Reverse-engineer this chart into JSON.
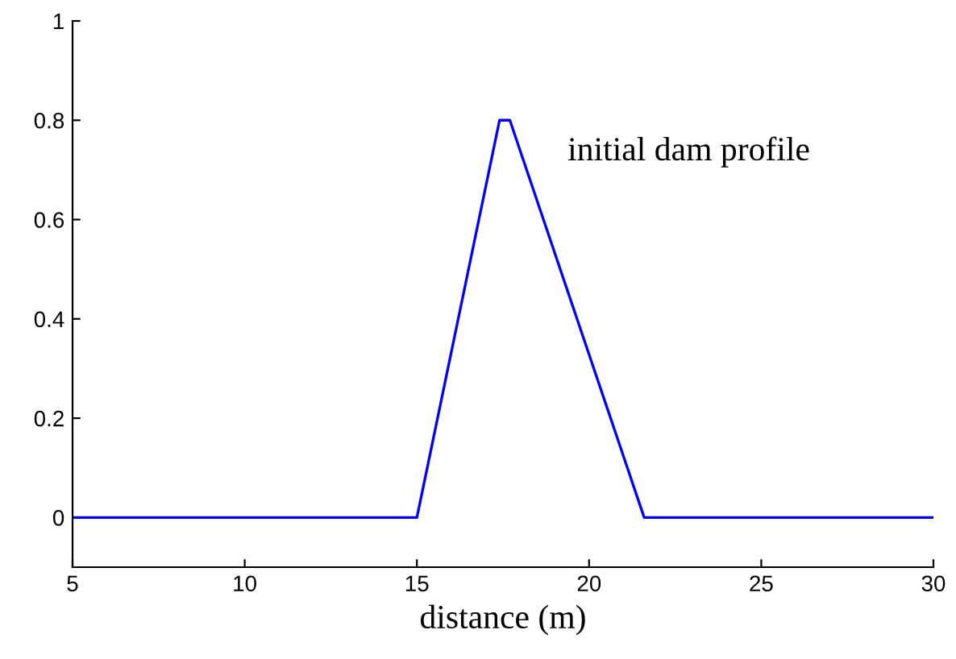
{
  "chart_data": {
    "type": "line",
    "xlabel": "distance (m)",
    "x": [
      5,
      15,
      17.4,
      17.7,
      21.6,
      30
    ],
    "series": [
      {
        "color": "#0000ff",
        "values": [
          0,
          0,
          0.8,
          0.8,
          0,
          0
        ]
      }
    ],
    "xlim": [
      5,
      30
    ],
    "xticks": [
      5,
      10,
      15,
      20,
      25,
      30
    ],
    "ylim": [
      -0.1,
      1
    ],
    "yticks": [
      0,
      0.2,
      0.4,
      0.6,
      0.8,
      1
    ],
    "annotations": [
      "initial dam profile"
    ],
    "grid": false,
    "marker": "none",
    "line_style": "solid"
  }
}
